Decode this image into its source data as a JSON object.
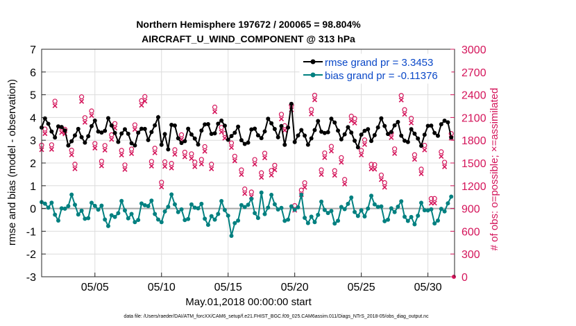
{
  "chart_data": {
    "type": "line",
    "title_line1": "Northern Hemisphere 197672 / 200065 = 98.804%",
    "title_line2": "AIRCRAFT_U_WIND_COMPONENT @ 313 hPa",
    "xlabel": "May.01,2018 00:00:00 start",
    "ylabel_left": "rmse and bias (model - observation)",
    "ylabel_right": "# of obs: o=possible; ×=assimilated",
    "ylim_left": [
      -3,
      7
    ],
    "ylim_right": [
      0,
      3000
    ],
    "xlim": [
      1,
      32
    ],
    "x_ticks": [
      5,
      10,
      15,
      20,
      25,
      30
    ],
    "x_tick_labels": [
      "05/05",
      "05/10",
      "05/15",
      "05/20",
      "05/25",
      "05/30"
    ],
    "y_ticks_left": [
      "-3",
      "-2",
      "-1",
      "0",
      "1",
      "2",
      "3",
      "4",
      "5",
      "6",
      "7"
    ],
    "y_ticks_right": [
      "0",
      "300",
      "600",
      "900",
      "1200",
      "1500",
      "1800",
      "2100",
      "2400",
      "2700",
      "3000"
    ],
    "legend": [
      {
        "name": "rmse grand pr = 3.3453",
        "color": "#000000"
      },
      {
        "name": "bias grand pr = -0.11376",
        "color": "#008080"
      }
    ],
    "footnote": "data file: /Users/raeder/DAI/ATM_forcXX/CAM6_setup/f.e21.FHIST_BGC.f09_025.CAM6assim.011/Diags_NTrS_2018-05/obs_diag_output.nc",
    "counts_cycle": [
      1800,
      2120,
      1550,
      2150,
      1550,
      2100,
      1550,
      2150,
      1560,
      1450,
      1800,
      1350,
      1600,
      2050,
      1700,
      1130,
      1400,
      1600,
      2060,
      1050,
      2200,
      1650,
      1470,
      1900,
      1670,
      1350,
      1860,
      2100,
      1500,
      1160,
      1620,
      1920
    ],
    "colors": {
      "rmse": "#000000",
      "bias": "#008080",
      "obs": "#d4145a",
      "zero_line": "#a8a8a8",
      "grid": "#dcdcdc"
    }
  }
}
